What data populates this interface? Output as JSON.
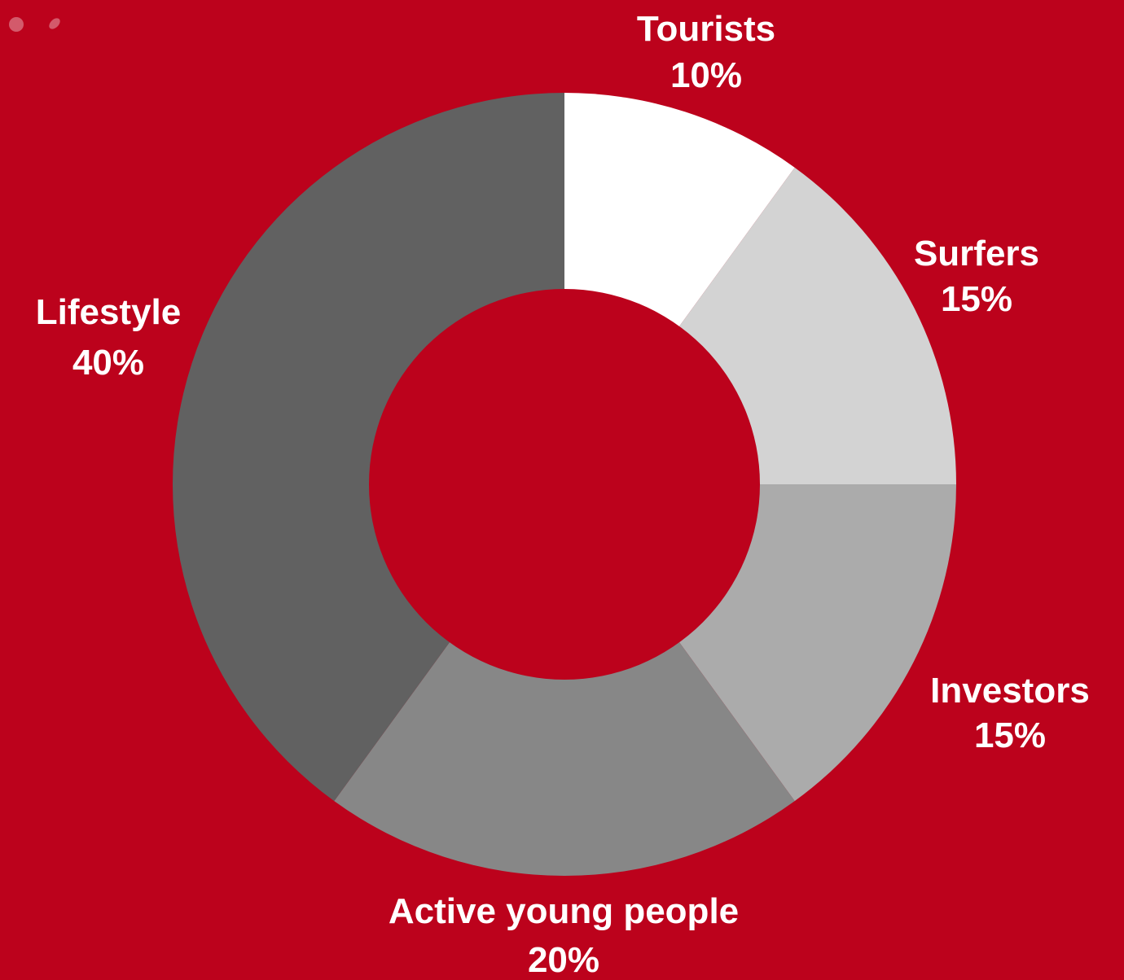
{
  "background_color": "#bc021c",
  "chart_data": {
    "type": "donut",
    "start_angle_deg": 0,
    "direction": "clockwise",
    "slices": [
      {
        "name": "Tourists",
        "value": 10,
        "label": "Tourists",
        "value_label": "10%",
        "color": "#ffffff"
      },
      {
        "name": "Surfers",
        "value": 15,
        "label": "Surfers",
        "value_label": "15%",
        "color": "#d3d3d3"
      },
      {
        "name": "Investors",
        "value": 15,
        "label": "Investors",
        "value_label": "15%",
        "color": "#ababab"
      },
      {
        "name": "Active young people",
        "value": 20,
        "label": "Active young people",
        "value_label": "20%",
        "color": "#878787"
      },
      {
        "name": "Lifestyle",
        "value": 40,
        "label": "Lifestyle",
        "value_label": "40%",
        "color": "#616161"
      }
    ]
  }
}
